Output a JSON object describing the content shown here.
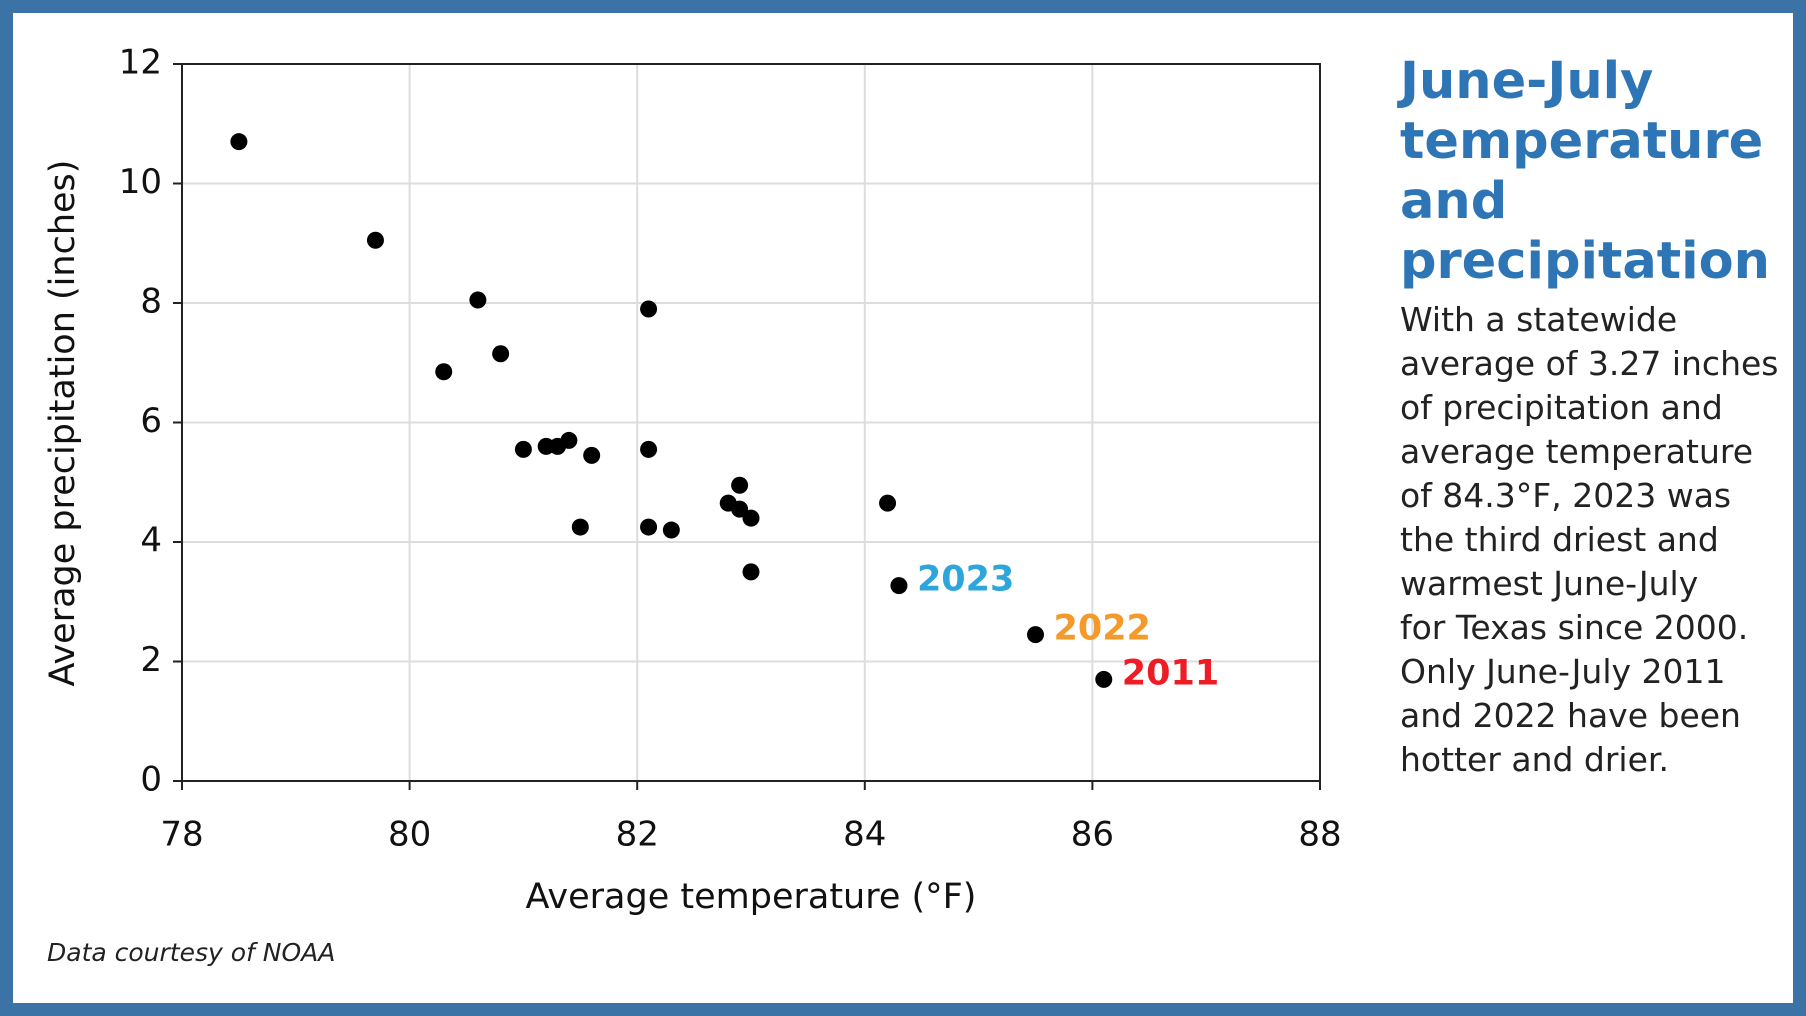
{
  "chart_data": {
    "type": "scatter",
    "xlabel": "Average temperature (°F)",
    "ylabel": "Average precipitation (inches)",
    "x": [
      78.5,
      79.7,
      80.3,
      80.6,
      80.8,
      81.0,
      81.2,
      81.3,
      81.4,
      81.5,
      81.6,
      82.1,
      82.1,
      82.1,
      82.3,
      82.8,
      82.9,
      82.9,
      83.0,
      83.0,
      84.2,
      84.3,
      85.5,
      86.1
    ],
    "series": [
      {
        "color": "#000000",
        "values": [
          10.7,
          9.05,
          6.85,
          8.05,
          7.15,
          5.55,
          5.6,
          5.6,
          5.7,
          4.25,
          5.45,
          7.9,
          5.55,
          4.25,
          4.2,
          4.65,
          4.95,
          4.55,
          4.4,
          3.5,
          4.65,
          3.27,
          2.45,
          1.7
        ]
      }
    ],
    "annotations": [
      {
        "text": "2023",
        "x": 84.3,
        "y": 3.27,
        "color": "#2ea6dc"
      },
      {
        "text": "2022",
        "x": 85.5,
        "y": 2.45,
        "color": "#f39a2b"
      },
      {
        "text": "2011",
        "x": 86.1,
        "y": 1.7,
        "color": "#ee1c25"
      }
    ],
    "xlim": [
      78,
      88
    ],
    "xticks": [
      78,
      80,
      82,
      84,
      86,
      88
    ],
    "ylim": [
      0,
      12
    ],
    "yticks": [
      0,
      2,
      4,
      6,
      8,
      10,
      12
    ],
    "grid": true
  },
  "sidebar": {
    "title": "June-July temperature and precipitation",
    "body": [
      "With a statewide",
      "average of 3.27 inches",
      "of precipitation and",
      "average temperature",
      "of 84.3°F, 2023 was",
      "the third driest and",
      "warmest June-July",
      "for Texas since 2000.",
      "Only June-July 2011",
      "and 2022 have been",
      "hotter and drier."
    ]
  },
  "footnote": "Data courtesy of NOAA"
}
